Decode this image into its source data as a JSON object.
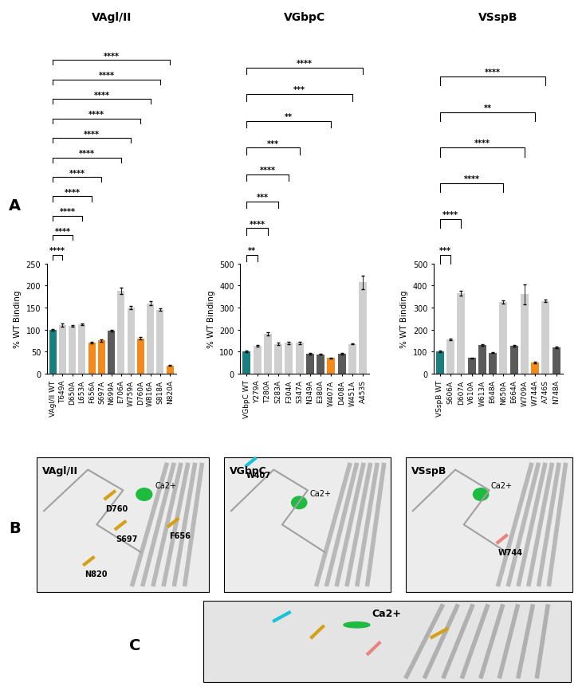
{
  "chart_data": [
    {
      "type": "bar",
      "title": "VAgl/II",
      "y_label": "% WT Binding",
      "categories": [
        "VAgl/II WT",
        "T649A",
        "D650A",
        "L653A",
        "F656A",
        "S697A",
        "N699A",
        "E706A",
        "W759A",
        "D760A",
        "W816A",
        "S818A",
        "N820A"
      ],
      "values": [
        100,
        110,
        108,
        112,
        70,
        75,
        97,
        188,
        150,
        80,
        160,
        145,
        18
      ],
      "errors": [
        2,
        3,
        2,
        2,
        2,
        2,
        2,
        8,
        3,
        3,
        4,
        3,
        1
      ],
      "colors": [
        "#1b7f7f",
        "#cfcfcf",
        "#cfcfcf",
        "#cfcfcf",
        "#f28a1c",
        "#f28a1c",
        "#5a5a5a",
        "#cfcfcf",
        "#cfcfcf",
        "#f28a1c",
        "#cfcfcf",
        "#cfcfcf",
        "#f28a1c"
      ],
      "ylim": [
        0,
        250
      ],
      "yticks": [
        0,
        50,
        100,
        150,
        200,
        250
      ],
      "significance": [
        {
          "category": "T649A",
          "label": "****"
        },
        {
          "category": "D650A",
          "label": "****"
        },
        {
          "category": "L653A",
          "label": "****"
        },
        {
          "category": "F656A",
          "label": "****"
        },
        {
          "category": "S697A",
          "label": "****"
        },
        {
          "category": "E706A",
          "label": "****"
        },
        {
          "category": "W759A",
          "label": "****"
        },
        {
          "category": "D760A",
          "label": "****"
        },
        {
          "category": "W816A",
          "label": "****"
        },
        {
          "category": "S818A",
          "label": "****"
        },
        {
          "category": "N820A",
          "label": "****"
        }
      ]
    },
    {
      "type": "bar",
      "title": "VGbpC",
      "y_label": "% WT Binding",
      "categories": [
        "VGbpC WT",
        "Y279A",
        "T280A",
        "S283A",
        "F304A",
        "S347A",
        "N349A",
        "E380A",
        "W407A",
        "D408A",
        "W451A",
        "A453S"
      ],
      "values": [
        100,
        125,
        180,
        135,
        140,
        140,
        90,
        88,
        70,
        90,
        135,
        415
      ],
      "errors": [
        3,
        4,
        8,
        4,
        5,
        6,
        3,
        2,
        2,
        2,
        3,
        30
      ],
      "colors": [
        "#1b7f7f",
        "#cfcfcf",
        "#cfcfcf",
        "#cfcfcf",
        "#cfcfcf",
        "#cfcfcf",
        "#5a5a5a",
        "#5a5a5a",
        "#f28a1c",
        "#5a5a5a",
        "#cfcfcf",
        "#cfcfcf"
      ],
      "ylim": [
        0,
        500
      ],
      "yticks": [
        0,
        100,
        200,
        300,
        400,
        500
      ],
      "significance": [
        {
          "category": "Y279A",
          "label": "**"
        },
        {
          "category": "T280A",
          "label": "****"
        },
        {
          "category": "S283A",
          "label": "***"
        },
        {
          "category": "F304A",
          "label": "****"
        },
        {
          "category": "S347A",
          "label": "***"
        },
        {
          "category": "W407A",
          "label": "**"
        },
        {
          "category": "W451A",
          "label": "***"
        },
        {
          "category": "A453S",
          "label": "****"
        }
      ]
    },
    {
      "type": "bar",
      "title": "VSspB",
      "y_label": "% WT Binding",
      "categories": [
        "VSspB WT",
        "S606A",
        "D607A",
        "V610A",
        "W613A",
        "E648A",
        "N650A",
        "E664A",
        "W709A",
        "W744A",
        "A746S",
        "N748A"
      ],
      "values": [
        100,
        155,
        365,
        70,
        130,
        95,
        325,
        125,
        360,
        50,
        330,
        120
      ],
      "errors": [
        3,
        5,
        10,
        3,
        3,
        2,
        8,
        3,
        45,
        3,
        5,
        3
      ],
      "colors": [
        "#1b7f7f",
        "#cfcfcf",
        "#cfcfcf",
        "#5a5a5a",
        "#5a5a5a",
        "#5a5a5a",
        "#cfcfcf",
        "#5a5a5a",
        "#cfcfcf",
        "#f28a1c",
        "#cfcfcf",
        "#5a5a5a"
      ],
      "ylim": [
        0,
        500
      ],
      "yticks": [
        0,
        100,
        200,
        300,
        400,
        500
      ],
      "significance": [
        {
          "category": "S606A",
          "label": "***"
        },
        {
          "category": "D607A",
          "label": "****"
        },
        {
          "category": "N650A",
          "label": "****"
        },
        {
          "category": "W709A",
          "label": "****"
        },
        {
          "category": "W744A",
          "label": "**"
        },
        {
          "category": "A746S",
          "label": "****"
        }
      ]
    }
  ],
  "panel_labels": [
    "A",
    "B",
    "C"
  ],
  "structures": [
    {
      "title": "VAgl/II",
      "ion": "Ca2+",
      "residues": [
        "D760",
        "S697",
        "F656",
        "N820"
      ]
    },
    {
      "title": "VGbpC",
      "ion": "Ca2+",
      "residues": [
        "W407"
      ]
    },
    {
      "title": "VSspB",
      "ion": "Ca2+",
      "residues": [
        "W744"
      ]
    }
  ],
  "overlay": {
    "ion": "Ca2+"
  }
}
